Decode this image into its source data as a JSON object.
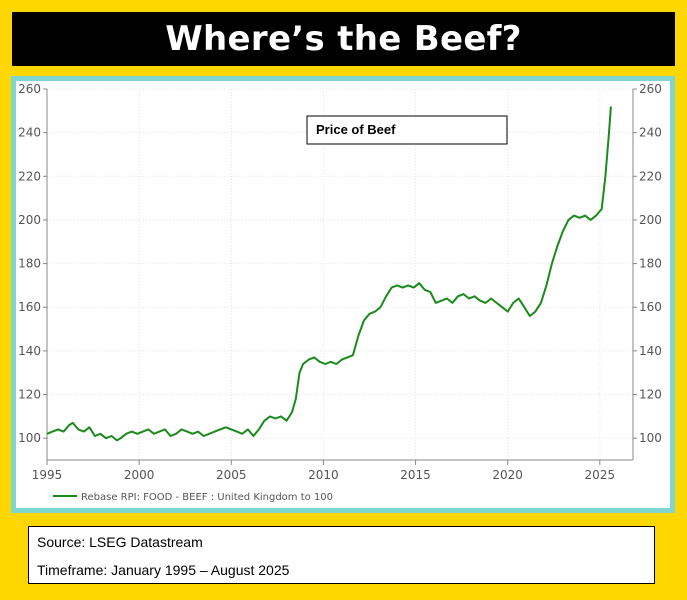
{
  "header": {
    "title": "Where’s the Beef?"
  },
  "colors": {
    "background": "#ffd700",
    "frame": "#7fd6cf",
    "line": "#1a8a1a",
    "title_bar": "#000000"
  },
  "footer": {
    "source": "Source:  LSEG Datastream",
    "timeframe": "Timeframe: January 1995 – August 2025"
  },
  "chart_data": {
    "type": "line",
    "title": "",
    "annotation": "Price of Beef",
    "xlabel": "",
    "ylabel": "",
    "xlim": [
      1995,
      2026.8
    ],
    "ylim": [
      90,
      260
    ],
    "x_ticks": [
      1995,
      2000,
      2005,
      2010,
      2015,
      2020,
      2025
    ],
    "y_ticks": [
      100,
      120,
      140,
      160,
      180,
      200,
      220,
      240,
      260
    ],
    "y_axis_both_sides": true,
    "grid": true,
    "legend_position": "bottom-left",
    "series": [
      {
        "name": "Rebase RPI: FOOD - BEEF : United Kingdom to 100",
        "x": [
          1995.0,
          1995.3,
          1995.6,
          1995.9,
          1996.2,
          1996.4,
          1996.7,
          1997.0,
          1997.3,
          1997.6,
          1997.9,
          1998.2,
          1998.5,
          1998.8,
          1999.0,
          1999.3,
          1999.6,
          1999.9,
          2000.2,
          2000.5,
          2000.8,
          2001.1,
          2001.4,
          2001.7,
          2002.0,
          2002.3,
          2002.6,
          2002.9,
          2003.2,
          2003.5,
          2003.8,
          2004.1,
          2004.4,
          2004.7,
          2005.0,
          2005.3,
          2005.6,
          2005.9,
          2006.2,
          2006.5,
          2006.8,
          2007.1,
          2007.4,
          2007.7,
          2008.0,
          2008.3,
          2008.5,
          2008.7,
          2008.9,
          2009.2,
          2009.5,
          2009.8,
          2010.1,
          2010.4,
          2010.7,
          2011.0,
          2011.3,
          2011.6,
          2011.9,
          2012.2,
          2012.5,
          2012.8,
          2013.1,
          2013.4,
          2013.7,
          2014.0,
          2014.3,
          2014.6,
          2014.9,
          2015.2,
          2015.5,
          2015.8,
          2016.1,
          2016.4,
          2016.7,
          2017.0,
          2017.3,
          2017.6,
          2017.9,
          2018.2,
          2018.5,
          2018.8,
          2019.1,
          2019.4,
          2019.7,
          2020.0,
          2020.3,
          2020.6,
          2020.9,
          2021.2,
          2021.5,
          2021.8,
          2022.1,
          2022.4,
          2022.7,
          2023.0,
          2023.3,
          2023.6,
          2023.9,
          2024.2,
          2024.5,
          2024.8,
          2025.1,
          2025.3,
          2025.5,
          2025.6
        ],
        "values": [
          102,
          103,
          104,
          103,
          106,
          107,
          104,
          103,
          105,
          101,
          102,
          100,
          101,
          99,
          100,
          102,
          103,
          102,
          103,
          104,
          102,
          103,
          104,
          101,
          102,
          104,
          103,
          102,
          103,
          101,
          102,
          103,
          104,
          105,
          104,
          103,
          102,
          104,
          101,
          104,
          108,
          110,
          109,
          110,
          108,
          112,
          118,
          130,
          134,
          136,
          137,
          135,
          134,
          135,
          134,
          136,
          137,
          138,
          147,
          154,
          157,
          158,
          160,
          165,
          169,
          170,
          169,
          170,
          169,
          171,
          168,
          167,
          162,
          163,
          164,
          162,
          165,
          166,
          164,
          165,
          163,
          162,
          164,
          162,
          160,
          158,
          162,
          164,
          160,
          156,
          158,
          162,
          170,
          180,
          188,
          195,
          200,
          202,
          201,
          202,
          200,
          202,
          205,
          220,
          240,
          252
        ]
      }
    ]
  }
}
